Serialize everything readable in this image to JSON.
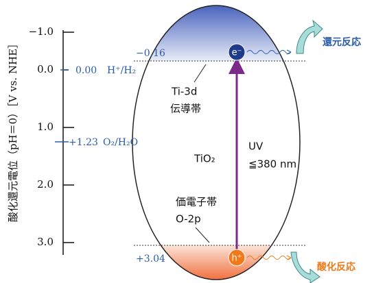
{
  "axis": {
    "label": "酸化還元電位（pH＝0）［V vs. NHE］",
    "ticks": [
      "−1.0",
      "0.0",
      "1.0",
      "2.0",
      "3.0"
    ]
  },
  "couples": [
    {
      "potential": "0.00",
      "label": "H⁺/H₂"
    },
    {
      "potential": "+1.23",
      "label": "O₂/H₂O"
    }
  ],
  "band_edges": {
    "conduction": "−0.16",
    "valence": "+3.04"
  },
  "semiconductor": "TiO₂",
  "conduction_band": {
    "orbital": "Ti-3d",
    "name": "伝導帯"
  },
  "valence_band": {
    "name": "価電子帯",
    "orbital": "O-2p"
  },
  "excitation": {
    "source": "UV",
    "wavelength": "≦380 nm"
  },
  "carriers": {
    "electron": "e⁻",
    "hole": "h⁺"
  },
  "reactions": {
    "reduction": "還元反応",
    "oxidation": "酸化反応"
  }
}
